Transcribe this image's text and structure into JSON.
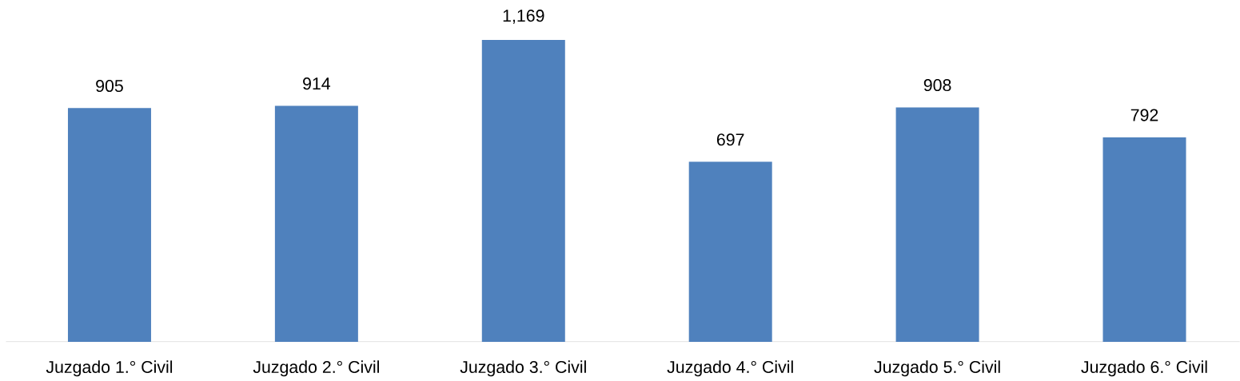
{
  "chart_data": {
    "type": "bar",
    "categories": [
      "Juzgado 1.° Civil",
      "Juzgado 2.° Civil",
      "Juzgado 3.° Civil",
      "Juzgado 4.° Civil",
      "Juzgado 5.° Civil",
      "Juzgado 6.° Civil"
    ],
    "values": [
      905,
      914,
      1169,
      697,
      908,
      792
    ],
    "value_labels": [
      "905",
      "914",
      "1,169",
      "697",
      "908",
      "792"
    ],
    "color": "#4f81bd"
  }
}
